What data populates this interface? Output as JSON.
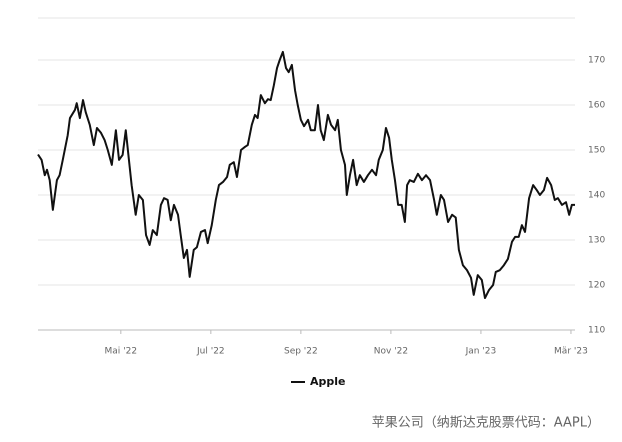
{
  "chart_data": {
    "type": "line",
    "caption": "苹果公司（纳斯达克股票代码：AAPL）",
    "x": [
      2.16,
      2.24,
      2.31,
      2.36,
      2.42,
      2.49,
      2.58,
      2.64,
      2.71,
      2.82,
      2.87,
      2.98,
      3.02,
      3.09,
      3.16,
      3.22,
      3.31,
      3.4,
      3.47,
      3.56,
      3.64,
      3.71,
      3.8,
      3.89,
      3.96,
      4.04,
      4.11,
      4.18,
      4.24,
      4.33,
      4.4,
      4.49,
      4.56,
      4.64,
      4.71,
      4.8,
      4.89,
      4.96,
      5.04,
      5.11,
      5.18,
      5.27,
      5.33,
      5.4,
      5.47,
      5.53,
      5.62,
      5.69,
      5.78,
      5.87,
      5.93,
      6.02,
      6.11,
      6.18,
      6.27,
      6.36,
      6.42,
      6.51,
      6.58,
      6.67,
      6.76,
      6.82,
      6.91,
      6.98,
      7.04,
      7.11,
      7.2,
      7.27,
      7.33,
      7.4,
      7.47,
      7.53,
      7.6,
      7.67,
      7.73,
      7.8,
      7.87,
      7.93,
      8.0,
      8.07,
      8.16,
      8.22,
      8.31,
      8.38,
      8.44,
      8.51,
      8.6,
      8.67,
      8.76,
      8.82,
      8.89,
      8.98,
      9.02,
      9.09,
      9.16,
      9.24,
      9.31,
      9.4,
      9.49,
      9.58,
      9.67,
      9.73,
      9.82,
      9.89,
      9.96,
      10.02,
      10.09,
      10.16,
      10.24,
      10.31,
      10.36,
      10.42,
      10.51,
      10.6,
      10.69,
      10.78,
      10.87,
      10.96,
      11.02,
      11.11,
      11.18,
      11.27,
      11.36,
      11.44,
      11.51,
      11.6,
      11.69,
      11.78,
      11.84,
      11.93,
      12.02,
      12.09,
      12.18,
      12.27,
      12.33,
      12.42,
      12.51,
      12.6,
      12.69,
      12.76,
      12.84,
      12.91,
      12.98,
      13.07,
      13.16,
      13.24,
      13.31,
      13.4,
      13.47,
      13.56,
      13.64,
      13.71,
      13.8,
      13.89,
      13.96,
      14.02,
      14.09
    ],
    "series": [
      {
        "name": "Apple",
        "color": "#111111",
        "values": [
          149,
          147.8,
          144.4,
          145.6,
          143.3,
          136.7,
          143.3,
          144.4,
          147.8,
          153.3,
          157.1,
          158.9,
          160.4,
          157.1,
          161.1,
          158.4,
          155.6,
          151.1,
          154.9,
          153.8,
          152.2,
          150,
          146.7,
          154.4,
          147.8,
          148.9,
          154.4,
          147.8,
          142.2,
          135.6,
          140,
          138.9,
          131.1,
          128.9,
          132.2,
          131.1,
          137.8,
          139.3,
          138.9,
          134.4,
          137.8,
          135.6,
          131.1,
          126,
          127.8,
          121.8,
          127.8,
          128.4,
          131.8,
          132.2,
          129.3,
          133.3,
          138.9,
          142.2,
          142.9,
          144,
          146.7,
          147.3,
          144,
          150,
          150.7,
          151.1,
          155.6,
          157.8,
          157.1,
          162.2,
          160.4,
          161.3,
          161.1,
          164.4,
          168.2,
          170,
          171.8,
          168.2,
          167.3,
          168.9,
          163.3,
          160,
          156.7,
          155.3,
          156.7,
          154.4,
          154.4,
          160,
          154.4,
          152.2,
          157.8,
          155.6,
          154.4,
          156.7,
          150,
          146.7,
          140,
          144.4,
          147.8,
          142.2,
          144.4,
          142.9,
          144.4,
          145.6,
          144.4,
          147.8,
          150,
          154.9,
          152.7,
          147.8,
          143.3,
          137.8,
          137.8,
          134,
          142.2,
          143.3,
          142.9,
          144.7,
          143.3,
          144.4,
          143.3,
          138.9,
          135.6,
          140,
          138.9,
          134,
          135.6,
          135,
          127.8,
          124.4,
          123.3,
          121.6,
          117.8,
          122.2,
          121.1,
          117.1,
          118.9,
          120,
          122.9,
          123.3,
          124.4,
          125.8,
          129.6,
          130.7,
          130.7,
          133.3,
          131.8,
          139.3,
          142.2,
          141.1,
          140,
          141.1,
          143.8,
          142.2,
          138.9,
          139.3,
          137.8,
          138.4,
          135.6,
          137.8,
          137.8
        ]
      }
    ],
    "xlim": [
      2.16,
      14.09
    ],
    "xticks": [
      {
        "value": 4,
        "label": "Mai '22"
      },
      {
        "value": 6,
        "label": "Jul '22"
      },
      {
        "value": 8,
        "label": "Sep '22"
      },
      {
        "value": 10,
        "label": "Nov '22"
      },
      {
        "value": 12,
        "label": "Jan '23"
      },
      {
        "value": 14,
        "label": "Mär '23"
      }
    ],
    "ylim": [
      110,
      180
    ],
    "yticks": [
      110,
      120,
      130,
      140,
      150,
      160,
      170
    ],
    "grid": true,
    "legend": "bottom"
  }
}
